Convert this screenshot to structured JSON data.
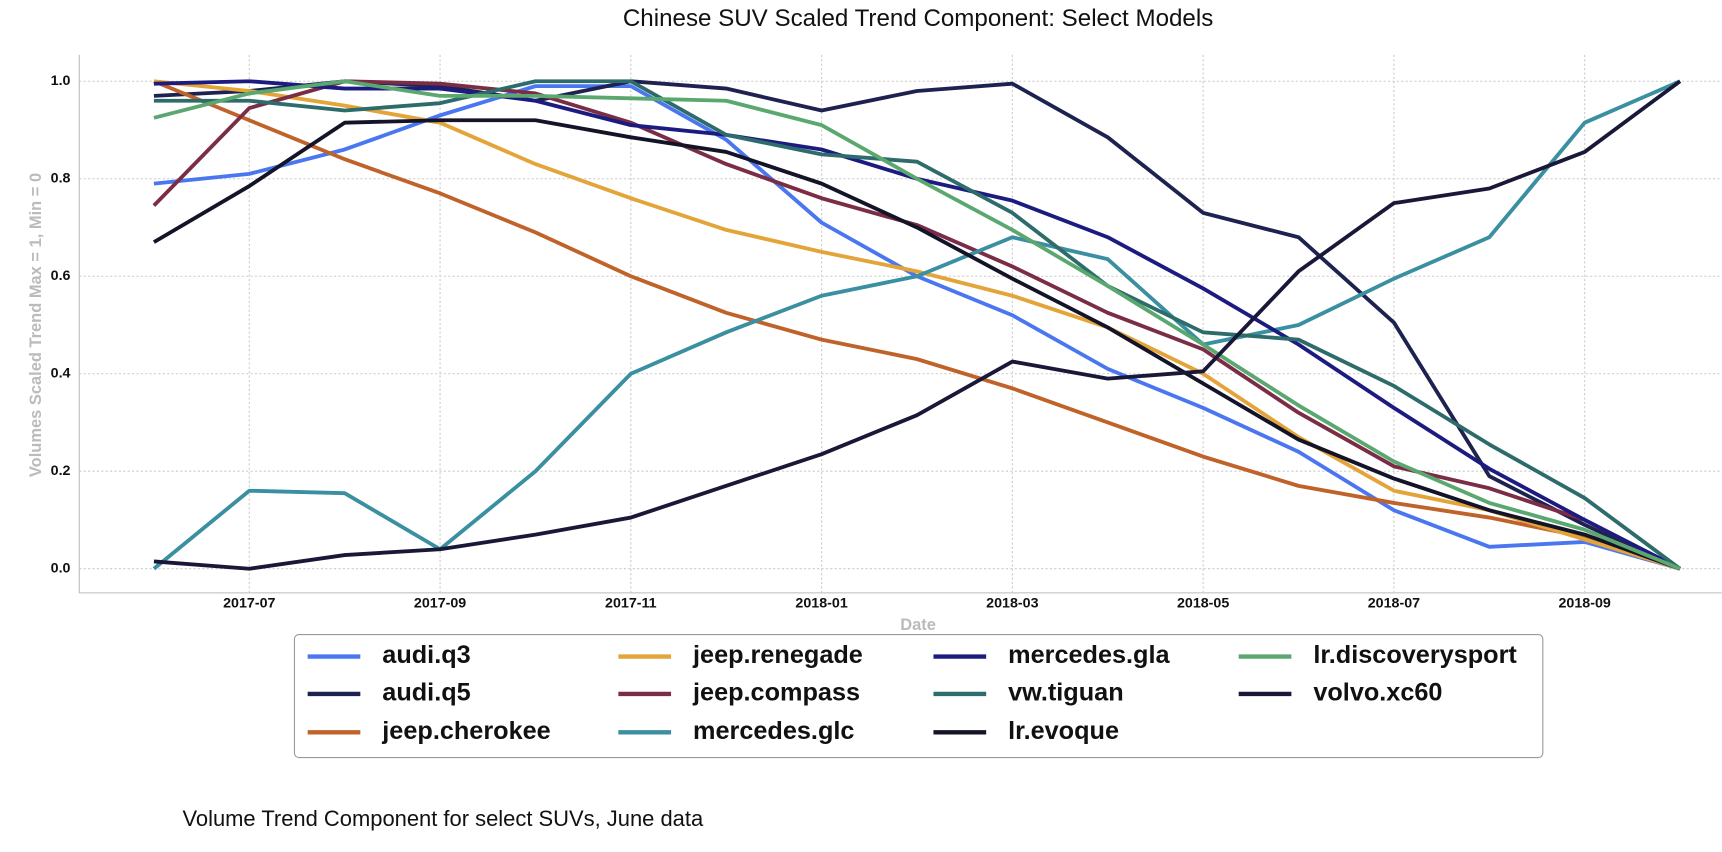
{
  "chart_data": {
    "type": "line",
    "title": "Chinese SUV Scaled Trend Component: Select Models",
    "x_label": "Date",
    "y_label": "Volumes Scaled Trend Max = 1, Min = 0",
    "caption": "Volume Trend Component for select SUVs, June data",
    "x": [
      "2017-06",
      "2017-07",
      "2017-08",
      "2017-09",
      "2017-10",
      "2017-11",
      "2017-12",
      "2018-01",
      "2018-02",
      "2018-03",
      "2018-04",
      "2018-05",
      "2018-06",
      "2018-07",
      "2018-08",
      "2018-09",
      "2018-10"
    ],
    "xlim": [
      "2017-06",
      "2018-10"
    ],
    "xticks": [
      "2017-07",
      "2017-09",
      "2017-11",
      "2018-01",
      "2018-03",
      "2018-05",
      "2018-07",
      "2018-09"
    ],
    "ylim": [
      0,
      1
    ],
    "yticks": [
      {
        "value": 0,
        "label": "0.0"
      },
      0.2,
      0.4,
      0.6,
      0.8,
      {
        "value": 1,
        "label": "1.0"
      }
    ],
    "grid": true,
    "legend": "bottom",
    "series": [
      {
        "name": "audi.q3",
        "color": "#4a76f0",
        "values": [
          0.79,
          0.81,
          0.86,
          0.93,
          0.99,
          0.99,
          0.88,
          0.71,
          0.6,
          0.52,
          0.41,
          0.33,
          0.24,
          0.12,
          0.045,
          0.055,
          0.0
        ]
      },
      {
        "name": "audi.q5",
        "color": "#1e2250",
        "values": [
          0.97,
          0.98,
          1.0,
          0.99,
          0.96,
          1.0,
          0.985,
          0.94,
          0.98,
          0.995,
          0.885,
          0.73,
          0.68,
          0.505,
          0.19,
          0.09,
          0.0
        ]
      },
      {
        "name": "jeep.cherokee",
        "color": "#c0632a",
        "values": [
          1.0,
          0.92,
          0.84,
          0.77,
          0.69,
          0.6,
          0.525,
          0.47,
          0.43,
          0.37,
          0.3,
          0.23,
          0.17,
          0.135,
          0.105,
          0.065,
          0.0
        ]
      },
      {
        "name": "jeep.renegade",
        "color": "#e3a43a",
        "values": [
          1.0,
          0.98,
          0.95,
          0.915,
          0.83,
          0.76,
          0.695,
          0.65,
          0.61,
          0.56,
          0.495,
          0.4,
          0.27,
          0.16,
          0.12,
          0.06,
          0.0
        ]
      },
      {
        "name": "jeep.compass",
        "color": "#7a2d45",
        "values": [
          0.745,
          0.945,
          1.0,
          0.995,
          0.975,
          0.915,
          0.83,
          0.76,
          0.705,
          0.62,
          0.525,
          0.45,
          0.32,
          0.21,
          0.165,
          0.1,
          0.0
        ]
      },
      {
        "name": "mercedes.glc",
        "color": "#3a8fa0",
        "values": [
          0.0,
          0.16,
          0.155,
          0.04,
          0.2,
          0.4,
          0.485,
          0.56,
          0.6,
          0.68,
          0.635,
          0.46,
          0.5,
          0.595,
          0.68,
          0.915,
          1.0
        ]
      },
      {
        "name": "mercedes.gla",
        "color": "#1c1c80",
        "values": [
          0.995,
          1.0,
          0.985,
          0.985,
          0.96,
          0.91,
          0.89,
          0.86,
          0.8,
          0.755,
          0.68,
          0.575,
          0.46,
          0.33,
          0.205,
          0.1,
          0.0
        ]
      },
      {
        "name": "vw.tiguan",
        "color": "#2e6b6b",
        "values": [
          0.96,
          0.96,
          0.94,
          0.955,
          1.0,
          1.0,
          0.89,
          0.85,
          0.835,
          0.73,
          0.58,
          0.485,
          0.47,
          0.375,
          0.255,
          0.145,
          0.0
        ]
      },
      {
        "name": "lr.evoque",
        "color": "#141428",
        "values": [
          0.67,
          0.785,
          0.915,
          0.92,
          0.92,
          0.885,
          0.855,
          0.79,
          0.7,
          0.595,
          0.495,
          0.38,
          0.265,
          0.185,
          0.12,
          0.07,
          0.0
        ]
      },
      {
        "name": "lr.discoverysport",
        "color": "#5aa870",
        "values": [
          0.925,
          0.975,
          1.0,
          0.97,
          0.97,
          0.965,
          0.96,
          0.91,
          0.8,
          0.695,
          0.58,
          0.46,
          0.335,
          0.22,
          0.135,
          0.08,
          0.0
        ]
      },
      {
        "name": "volvo.xc60",
        "color": "#1a1838",
        "values": [
          0.015,
          0.0,
          0.028,
          0.04,
          0.07,
          0.105,
          0.17,
          0.235,
          0.315,
          0.425,
          0.39,
          0.405,
          0.61,
          0.75,
          0.78,
          0.855,
          1.0
        ]
      }
    ]
  }
}
